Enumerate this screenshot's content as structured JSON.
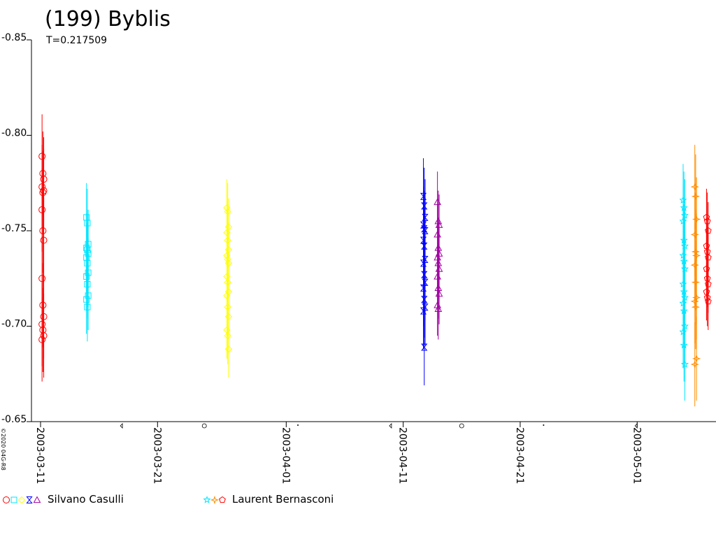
{
  "title": "(199) Byblis",
  "subtitle": "T=0.217509",
  "copyright": "©2020 04G-R8",
  "observers": [
    {
      "name": "Silvano Casulli",
      "colors": [
        "#ff0000",
        "#00e5ff",
        "#ffff00",
        "#0000ff",
        "#a000a0"
      ],
      "symbols": [
        "circle",
        "square",
        "diamond",
        "hourglass",
        "triangle"
      ]
    },
    {
      "name": "Laurent Bernasconi",
      "colors": [
        "#00e5ff",
        "#ff8c00",
        "#ff0000"
      ],
      "symbols": [
        "star",
        "diamond-star",
        "pentagon"
      ]
    }
  ],
  "chart_data": {
    "type": "scatter",
    "title": "(199) Byblis",
    "subtitle": "T=0.217509",
    "ylim": [
      -0.65,
      -0.85
    ],
    "y_inverted": true,
    "y_ticks": [
      "-0.65",
      "-0.70",
      "-0.75",
      "-0.80",
      "-0.85"
    ],
    "x_ticks": [
      "2003-03-11",
      "2003-03-21",
      "2003-04-01",
      "2003-04-11",
      "2003-04-21",
      "2003-05-01"
    ],
    "moon_phase_dates": [
      "2003-03-18",
      "2003-03-25",
      "2003-04-02",
      "2003-04-10",
      "2003-04-16",
      "2003-04-23",
      "2003-05-01"
    ],
    "grid": false,
    "series": [
      {
        "observer": "Silvano Casulli",
        "color": "#ff0000",
        "symbol": "circle",
        "date": "2003-03-11.2",
        "error": 0.022,
        "mags": [
          -0.789,
          -0.78,
          -0.777,
          -0.773,
          -0.77,
          -0.771,
          -0.761,
          -0.75,
          -0.745,
          -0.725,
          -0.711,
          -0.705,
          -0.701,
          -0.698,
          -0.695,
          -0.693
        ]
      },
      {
        "observer": "Silvano Casulli",
        "color": "#00e5ff",
        "symbol": "square",
        "date": "2003-03-15.0",
        "error": 0.018,
        "mags": [
          -0.757,
          -0.754,
          -0.743,
          -0.741,
          -0.74,
          -0.738,
          -0.736,
          -0.733,
          -0.728,
          -0.726,
          -0.722,
          -0.716,
          -0.714,
          -0.71
        ]
      },
      {
        "observer": "Silvano Casulli",
        "color": "#ffff00",
        "symbol": "diamond",
        "date": "2003-03-27.0",
        "error": 0.015,
        "mags": [
          -0.762,
          -0.76,
          -0.752,
          -0.749,
          -0.745,
          -0.74,
          -0.737,
          -0.735,
          -0.733,
          -0.726,
          -0.723,
          -0.718,
          -0.716,
          -0.71,
          -0.705,
          -0.698,
          -0.695,
          -0.688
        ]
      },
      {
        "observer": "Silvano Casulli",
        "color": "#0000ff",
        "symbol": "hourglass",
        "date": "2003-04-12.8",
        "error": 0.02,
        "mags": [
          -0.768,
          -0.763,
          -0.757,
          -0.753,
          -0.751,
          -0.75,
          -0.745,
          -0.742,
          -0.735,
          -0.733,
          -0.727,
          -0.723,
          -0.72,
          -0.714,
          -0.71,
          -0.708,
          -0.689
        ]
      },
      {
        "observer": "Silvano Casulli",
        "color": "#a000a0",
        "symbol": "triangle",
        "date": "2003-04-14.0",
        "error": 0.016,
        "mags": [
          -0.765,
          -0.755,
          -0.753,
          -0.748,
          -0.741,
          -0.738,
          -0.736,
          -0.733,
          -0.73,
          -0.726,
          -0.72,
          -0.717,
          -0.711,
          -0.709
        ]
      },
      {
        "observer": "Laurent Bernasconi",
        "color": "#00e5ff",
        "symbol": "star",
        "date": "2003-05-05.0",
        "error": 0.019,
        "mags": [
          -0.766,
          -0.762,
          -0.758,
          -0.755,
          -0.745,
          -0.742,
          -0.737,
          -0.734,
          -0.73,
          -0.722,
          -0.718,
          -0.715,
          -0.712,
          -0.708,
          -0.7,
          -0.697,
          -0.69,
          -0.68
        ]
      },
      {
        "observer": "Laurent Bernasconi",
        "color": "#ff8c00",
        "symbol": "diamond-star",
        "date": "2003-05-06.0",
        "error": 0.022,
        "mags": [
          -0.773,
          -0.768,
          -0.756,
          -0.748,
          -0.739,
          -0.737,
          -0.732,
          -0.723,
          -0.715,
          -0.713,
          -0.71,
          -0.683,
          -0.68
        ]
      },
      {
        "observer": "Laurent Bernasconi",
        "color": "#ff0000",
        "symbol": "pentagon",
        "date": "2003-05-07.0",
        "error": 0.015,
        "mags": [
          -0.757,
          -0.755,
          -0.75,
          -0.742,
          -0.739,
          -0.736,
          -0.73,
          -0.725,
          -0.722,
          -0.718,
          -0.715,
          -0.713
        ]
      }
    ]
  }
}
